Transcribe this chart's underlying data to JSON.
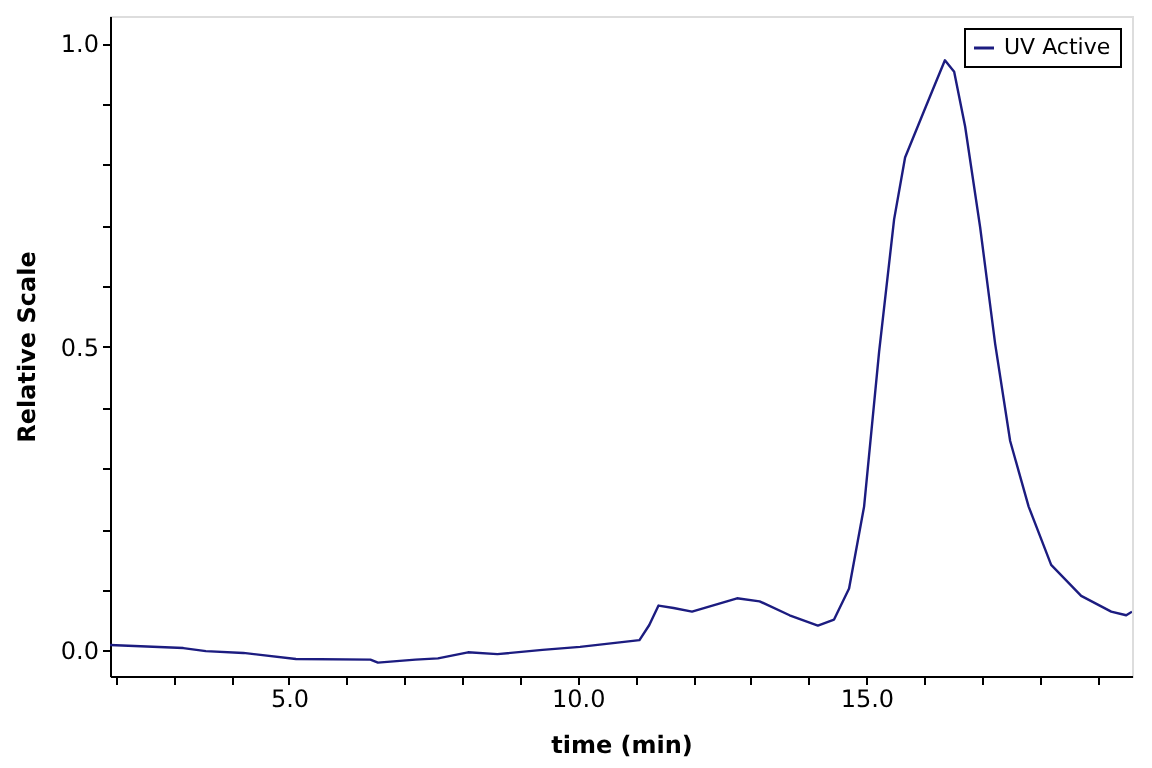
{
  "chart_data": {
    "type": "line",
    "xlabel": "time (min)",
    "ylabel": "Relative Scale",
    "xlim": [
      1.9,
      19.6
    ],
    "ylim": [
      -0.042,
      1.045
    ],
    "xticks": [
      {
        "value": 2,
        "label": null
      },
      {
        "value": 3,
        "label": null
      },
      {
        "value": 4,
        "label": null
      },
      {
        "value": 5,
        "label": "5.0"
      },
      {
        "value": 6,
        "label": null
      },
      {
        "value": 7,
        "label": null
      },
      {
        "value": 8,
        "label": null
      },
      {
        "value": 9,
        "label": null
      },
      {
        "value": 10,
        "label": "10.0"
      },
      {
        "value": 11,
        "label": null
      },
      {
        "value": 12,
        "label": null
      },
      {
        "value": 13,
        "label": null
      },
      {
        "value": 14,
        "label": null
      },
      {
        "value": 15,
        "label": "15.0"
      },
      {
        "value": 16,
        "label": null
      },
      {
        "value": 17,
        "label": null
      },
      {
        "value": 18,
        "label": null
      },
      {
        "value": 19,
        "label": null
      }
    ],
    "yticks": [
      {
        "value": 0,
        "label": "0.0"
      },
      {
        "value": 0.1,
        "label": null
      },
      {
        "value": 0.2,
        "label": null
      },
      {
        "value": 0.3,
        "label": null
      },
      {
        "value": 0.4,
        "label": null
      },
      {
        "value": 0.5,
        "label": "0.5"
      },
      {
        "value": 0.6,
        "label": null
      },
      {
        "value": 0.7,
        "label": null
      },
      {
        "value": 0.8,
        "label": null
      },
      {
        "value": 0.9,
        "label": null
      },
      {
        "value": 1.0,
        "label": "1.0"
      }
    ],
    "grid": false,
    "legend": "top right",
    "marker": "none",
    "line_style": "solid",
    "x": [
      1.9,
      3.17,
      3.56,
      4.21,
      5.12,
      6.41,
      6.54,
      7.19,
      7.58,
      8.1,
      8.61,
      9.39,
      10.04,
      11.07,
      11.24,
      11.4,
      11.66,
      11.98,
      12.76,
      13.15,
      13.67,
      14.16,
      14.44,
      14.7,
      14.96,
      15.22,
      15.48,
      15.67,
      16.0,
      16.19,
      16.36,
      16.52,
      16.71,
      16.97,
      17.23,
      17.49,
      17.81,
      18.2,
      18.72,
      19.24,
      19.5,
      19.6
    ],
    "series": [
      {
        "name": "UV Active",
        "color": "#1c1c80",
        "values": [
          0.009,
          0.004,
          -0.001,
          -0.004,
          -0.014,
          -0.015,
          -0.02,
          -0.015,
          -0.013,
          -0.003,
          -0.006,
          0.001,
          0.006,
          0.017,
          0.042,
          0.074,
          0.07,
          0.064,
          0.086,
          0.081,
          0.058,
          0.041,
          0.051,
          0.102,
          0.237,
          0.492,
          0.71,
          0.812,
          0.889,
          0.933,
          0.972,
          0.953,
          0.863,
          0.697,
          0.505,
          0.345,
          0.237,
          0.141,
          0.09,
          0.064,
          0.058,
          0.064
        ]
      }
    ]
  }
}
